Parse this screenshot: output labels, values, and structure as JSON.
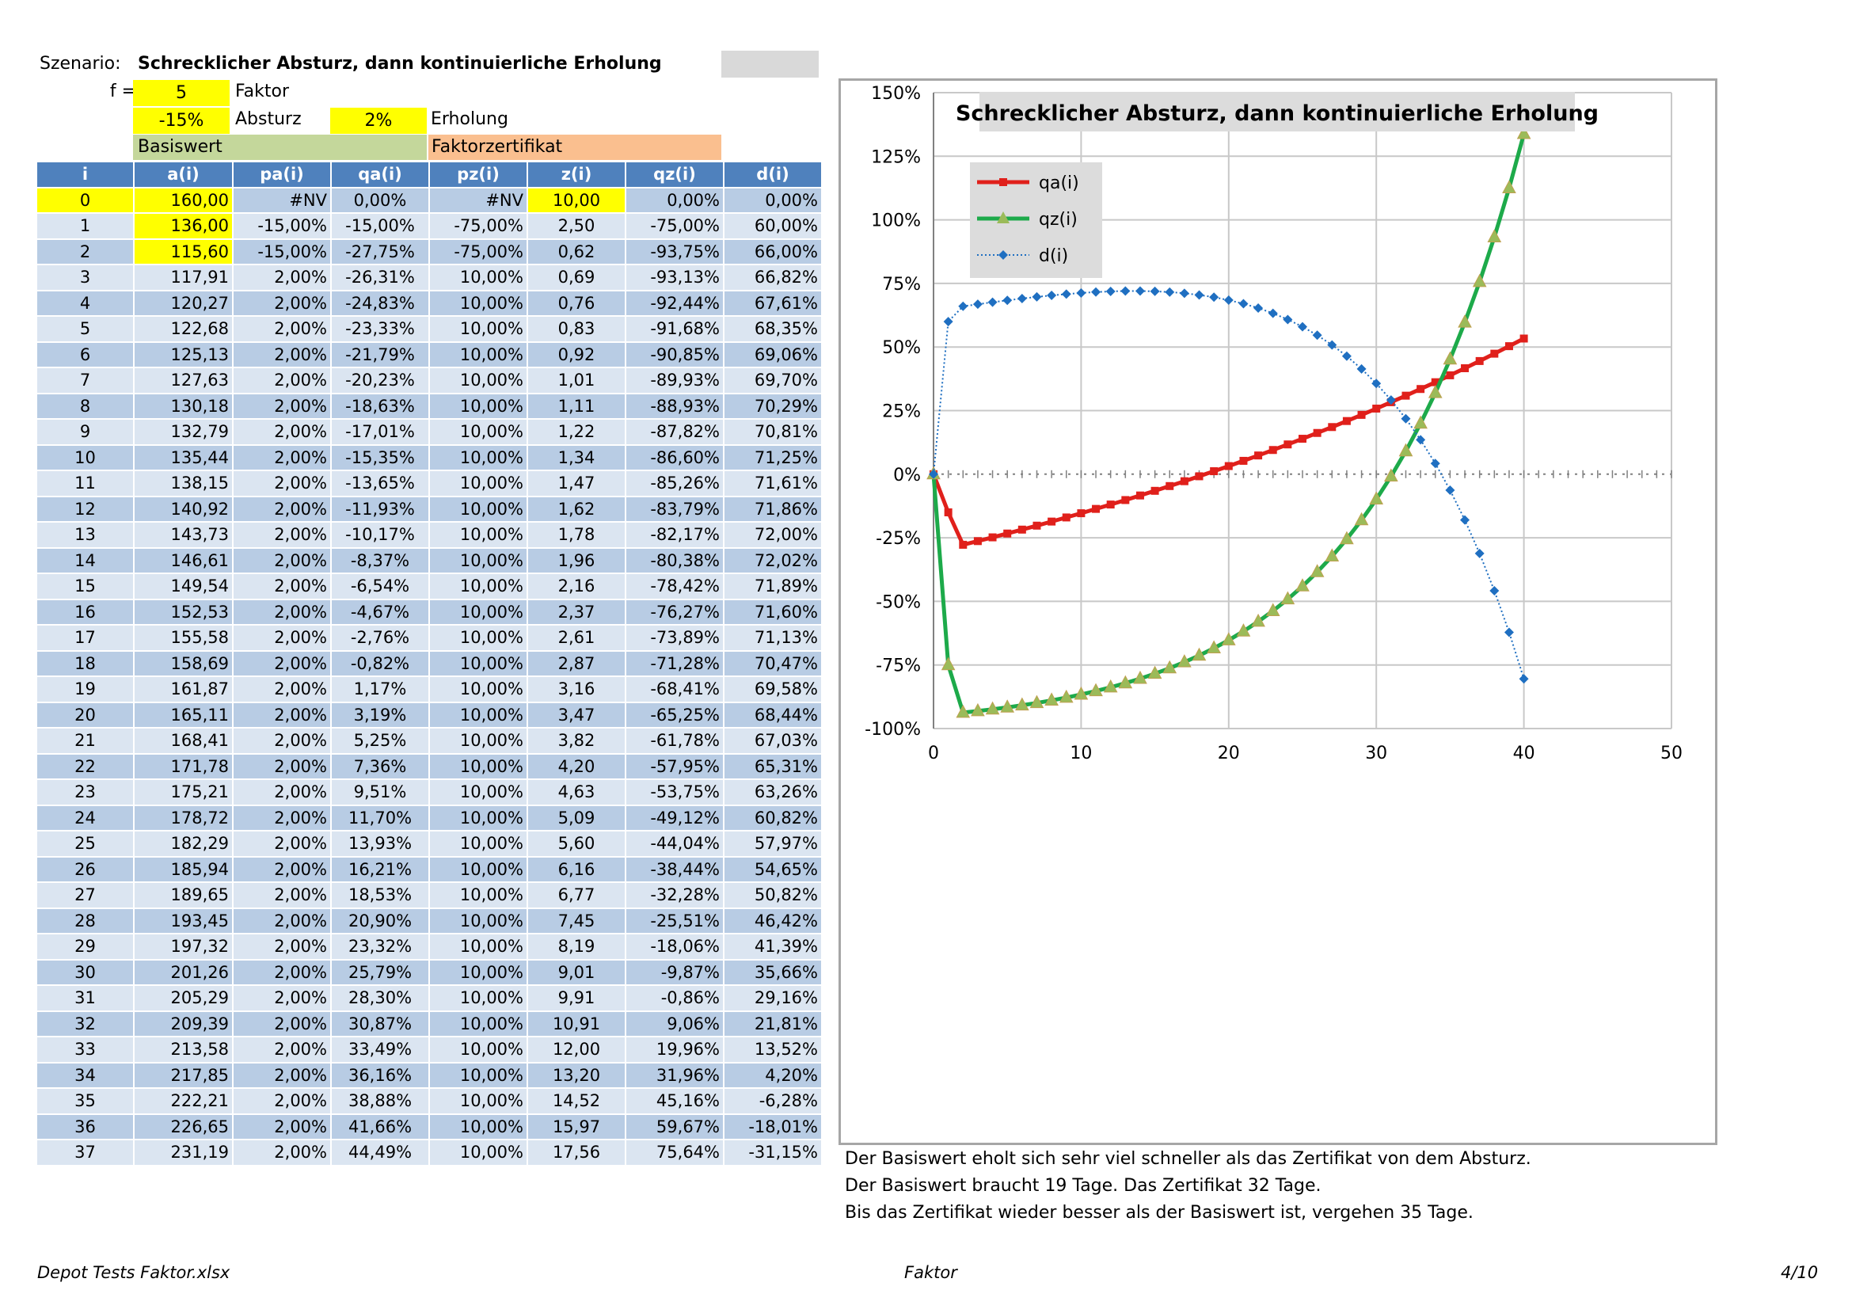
{
  "header": {
    "szenario_label": "Szenario:",
    "szenario_title": "Schrecklicher Absturz, dann kontinuierliche Erholung",
    "f_label": "f =",
    "f_value": "5",
    "f_desc": "Faktor",
    "absturz_value": "-15%",
    "absturz_label": "Absturz",
    "erholung_value": "2%",
    "erholung_label": "Erholung",
    "basiswert_label": "Basiswert",
    "faktor_label": "Faktorzertifikat"
  },
  "table": {
    "columns": [
      "i",
      "a(i)",
      "pa(i)",
      "qa(i)",
      "pz(i)",
      "z(i)",
      "qz(i)",
      "d(i)"
    ],
    "rows": [
      [
        "0",
        "160,00",
        "#NV",
        "0,00%",
        "#NV",
        "10,00",
        "0,00%",
        "0,00%"
      ],
      [
        "1",
        "136,00",
        "-15,00%",
        "-15,00%",
        "-75,00%",
        "2,50",
        "-75,00%",
        "60,00%"
      ],
      [
        "2",
        "115,60",
        "-15,00%",
        "-27,75%",
        "-75,00%",
        "0,62",
        "-93,75%",
        "66,00%"
      ],
      [
        "3",
        "117,91",
        "2,00%",
        "-26,31%",
        "10,00%",
        "0,69",
        "-93,13%",
        "66,82%"
      ],
      [
        "4",
        "120,27",
        "2,00%",
        "-24,83%",
        "10,00%",
        "0,76",
        "-92,44%",
        "67,61%"
      ],
      [
        "5",
        "122,68",
        "2,00%",
        "-23,33%",
        "10,00%",
        "0,83",
        "-91,68%",
        "68,35%"
      ],
      [
        "6",
        "125,13",
        "2,00%",
        "-21,79%",
        "10,00%",
        "0,92",
        "-90,85%",
        "69,06%"
      ],
      [
        "7",
        "127,63",
        "2,00%",
        "-20,23%",
        "10,00%",
        "1,01",
        "-89,93%",
        "69,70%"
      ],
      [
        "8",
        "130,18",
        "2,00%",
        "-18,63%",
        "10,00%",
        "1,11",
        "-88,93%",
        "70,29%"
      ],
      [
        "9",
        "132,79",
        "2,00%",
        "-17,01%",
        "10,00%",
        "1,22",
        "-87,82%",
        "70,81%"
      ],
      [
        "10",
        "135,44",
        "2,00%",
        "-15,35%",
        "10,00%",
        "1,34",
        "-86,60%",
        "71,25%"
      ],
      [
        "11",
        "138,15",
        "2,00%",
        "-13,65%",
        "10,00%",
        "1,47",
        "-85,26%",
        "71,61%"
      ],
      [
        "12",
        "140,92",
        "2,00%",
        "-11,93%",
        "10,00%",
        "1,62",
        "-83,79%",
        "71,86%"
      ],
      [
        "13",
        "143,73",
        "2,00%",
        "-10,17%",
        "10,00%",
        "1,78",
        "-82,17%",
        "72,00%"
      ],
      [
        "14",
        "146,61",
        "2,00%",
        "-8,37%",
        "10,00%",
        "1,96",
        "-80,38%",
        "72,02%"
      ],
      [
        "15",
        "149,54",
        "2,00%",
        "-6,54%",
        "10,00%",
        "2,16",
        "-78,42%",
        "71,89%"
      ],
      [
        "16",
        "152,53",
        "2,00%",
        "-4,67%",
        "10,00%",
        "2,37",
        "-76,27%",
        "71,60%"
      ],
      [
        "17",
        "155,58",
        "2,00%",
        "-2,76%",
        "10,00%",
        "2,61",
        "-73,89%",
        "71,13%"
      ],
      [
        "18",
        "158,69",
        "2,00%",
        "-0,82%",
        "10,00%",
        "2,87",
        "-71,28%",
        "70,47%"
      ],
      [
        "19",
        "161,87",
        "2,00%",
        "1,17%",
        "10,00%",
        "3,16",
        "-68,41%",
        "69,58%"
      ],
      [
        "20",
        "165,11",
        "2,00%",
        "3,19%",
        "10,00%",
        "3,47",
        "-65,25%",
        "68,44%"
      ],
      [
        "21",
        "168,41",
        "2,00%",
        "5,25%",
        "10,00%",
        "3,82",
        "-61,78%",
        "67,03%"
      ],
      [
        "22",
        "171,78",
        "2,00%",
        "7,36%",
        "10,00%",
        "4,20",
        "-57,95%",
        "65,31%"
      ],
      [
        "23",
        "175,21",
        "2,00%",
        "9,51%",
        "10,00%",
        "4,63",
        "-53,75%",
        "63,26%"
      ],
      [
        "24",
        "178,72",
        "2,00%",
        "11,70%",
        "10,00%",
        "5,09",
        "-49,12%",
        "60,82%"
      ],
      [
        "25",
        "182,29",
        "2,00%",
        "13,93%",
        "10,00%",
        "5,60",
        "-44,04%",
        "57,97%"
      ],
      [
        "26",
        "185,94",
        "2,00%",
        "16,21%",
        "10,00%",
        "6,16",
        "-38,44%",
        "54,65%"
      ],
      [
        "27",
        "189,65",
        "2,00%",
        "18,53%",
        "10,00%",
        "6,77",
        "-32,28%",
        "50,82%"
      ],
      [
        "28",
        "193,45",
        "2,00%",
        "20,90%",
        "10,00%",
        "7,45",
        "-25,51%",
        "46,42%"
      ],
      [
        "29",
        "197,32",
        "2,00%",
        "23,32%",
        "10,00%",
        "8,19",
        "-18,06%",
        "41,39%"
      ],
      [
        "30",
        "201,26",
        "2,00%",
        "25,79%",
        "10,00%",
        "9,01",
        "-9,87%",
        "35,66%"
      ],
      [
        "31",
        "205,29",
        "2,00%",
        "28,30%",
        "10,00%",
        "9,91",
        "-0,86%",
        "29,16%"
      ],
      [
        "32",
        "209,39",
        "2,00%",
        "30,87%",
        "10,00%",
        "10,91",
        "9,06%",
        "21,81%"
      ],
      [
        "33",
        "213,58",
        "2,00%",
        "33,49%",
        "10,00%",
        "12,00",
        "19,96%",
        "13,52%"
      ],
      [
        "34",
        "217,85",
        "2,00%",
        "36,16%",
        "10,00%",
        "13,20",
        "31,96%",
        "4,20%"
      ],
      [
        "35",
        "222,21",
        "2,00%",
        "38,88%",
        "10,00%",
        "14,52",
        "45,16%",
        "-6,28%"
      ],
      [
        "36",
        "226,65",
        "2,00%",
        "41,66%",
        "10,00%",
        "15,97",
        "59,67%",
        "-18,01%"
      ],
      [
        "37",
        "231,19",
        "2,00%",
        "44,49%",
        "10,00%",
        "17,56",
        "75,64%",
        "-31,15%"
      ]
    ]
  },
  "chart_data": {
    "type": "line",
    "title": "Schrecklicher Absturz, dann kontinuierliche Erholung",
    "xlim": [
      0,
      50
    ],
    "ylim": [
      -100,
      150
    ],
    "x_ticks": [
      "0",
      "10",
      "20",
      "30",
      "40",
      "50"
    ],
    "y_ticks": [
      "150%",
      "125%",
      "100%",
      "75%",
      "50%",
      "25%",
      "0%",
      "-25%",
      "-50%",
      "-75%",
      "-100%"
    ],
    "grid": true,
    "legend_placement": "top-left",
    "x": [
      0,
      1,
      2,
      3,
      4,
      5,
      6,
      7,
      8,
      9,
      10,
      11,
      12,
      13,
      14,
      15,
      16,
      17,
      18,
      19,
      20,
      21,
      22,
      23,
      24,
      25,
      26,
      27,
      28,
      29,
      30,
      31,
      32,
      33,
      34,
      35,
      36,
      37,
      38,
      39,
      40
    ],
    "series": [
      {
        "name": "qa(i)",
        "color": "#e0201b",
        "marker": "square",
        "values": [
          0,
          -15,
          -27.75,
          -26.31,
          -24.83,
          -23.33,
          -21.79,
          -20.23,
          -18.63,
          -17.01,
          -15.35,
          -13.65,
          -11.93,
          -10.17,
          -8.37,
          -6.54,
          -4.67,
          -2.76,
          -0.82,
          1.17,
          3.19,
          5.25,
          7.36,
          9.51,
          11.7,
          13.93,
          16.21,
          18.53,
          20.9,
          23.32,
          25.79,
          28.3,
          30.87,
          33.49,
          36.16,
          38.88,
          41.66,
          44.49,
          47.38,
          50.33,
          53.33
        ]
      },
      {
        "name": "qz(i)",
        "color": "#1daa4a",
        "marker": "triangle",
        "values": [
          0,
          -75,
          -93.75,
          -93.13,
          -92.44,
          -91.68,
          -90.85,
          -89.93,
          -88.93,
          -87.82,
          -86.6,
          -85.26,
          -83.79,
          -82.17,
          -80.38,
          -78.42,
          -76.27,
          -73.89,
          -71.28,
          -68.41,
          -65.25,
          -61.78,
          -57.95,
          -53.75,
          -49.12,
          -44.04,
          -38.44,
          -32.28,
          -25.51,
          -18.06,
          -9.87,
          -0.86,
          9.06,
          19.96,
          31.96,
          45.16,
          59.67,
          75.64,
          93.2,
          112.5,
          133.8
        ]
      },
      {
        "name": "d(i)",
        "color": "#1f6fc1",
        "marker": "diamond",
        "values": [
          0,
          60,
          66,
          66.82,
          67.61,
          68.35,
          69.06,
          69.7,
          70.29,
          70.81,
          71.25,
          71.61,
          71.86,
          72,
          72.02,
          71.89,
          71.6,
          71.13,
          70.47,
          69.58,
          68.44,
          67.03,
          65.31,
          63.26,
          60.82,
          57.97,
          54.65,
          50.82,
          46.42,
          41.39,
          35.66,
          29.16,
          21.81,
          13.52,
          4.2,
          -6.28,
          -18.01,
          -31.15,
          -45.82,
          -62.17,
          -80.47
        ]
      }
    ]
  },
  "notes": [
    "Der Basiswert eholt sich sehr viel schneller als das Zertifikat von dem Absturz.",
    "Der Basiswert braucht 19 Tage. Das Zertifikat 32 Tage.",
    "Bis das Zertifikat wieder besser als der Basiswert ist, vergehen 35 Tage."
  ],
  "footer": {
    "left": "Depot Tests Faktor.xlsx",
    "center": "Faktor",
    "right": "4/10"
  }
}
